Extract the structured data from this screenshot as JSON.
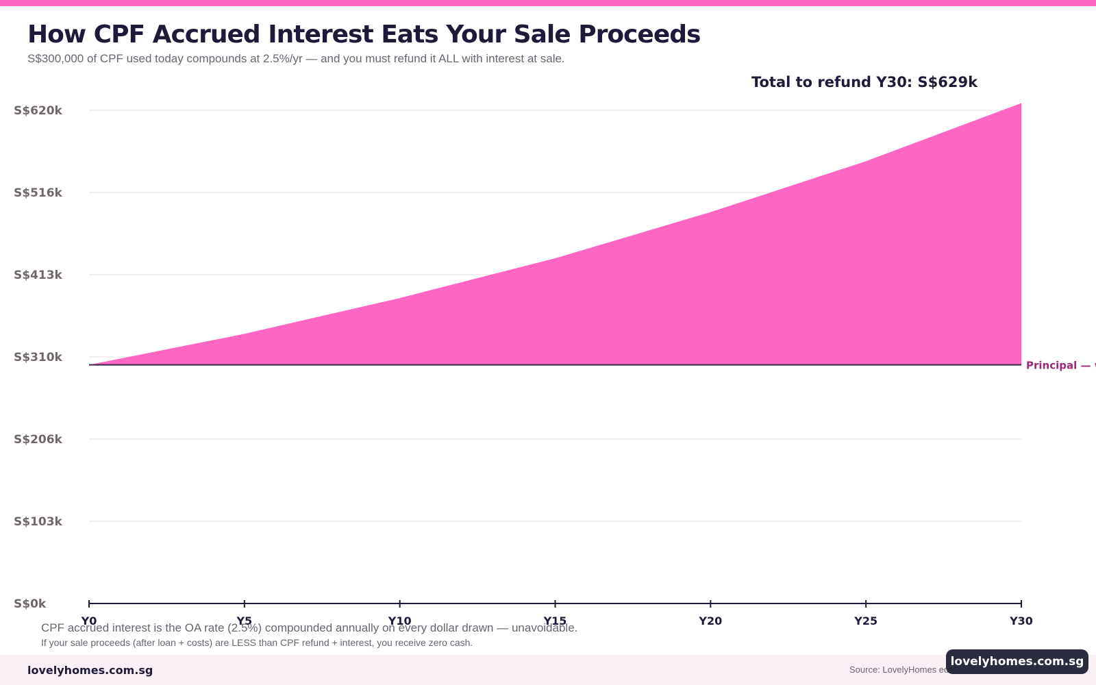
{
  "header": {
    "title": "How CPF Accrued Interest Eats Your Sale Proceeds",
    "subtitle": "S$300,000 of CPF used today compounds at 2.5%/yr — and you must refund it ALL with interest at sale."
  },
  "colors": {
    "accent": "#ff66c4",
    "area_fill": "#ff66c4",
    "principal_line": "#3a2340",
    "principal_label": "#9b2a73",
    "text_dark": "#1e1b3a",
    "text_muted": "#6b6470",
    "grid": "#e6e3e6",
    "badge_bg": "#2b2b3e"
  },
  "chart_data": {
    "type": "area",
    "title": "How CPF Accrued Interest Eats Your Sale Proceeds",
    "xlabel": "",
    "ylabel": "",
    "x_ticks": [
      "Y0",
      "Y5",
      "Y10",
      "Y15",
      "Y20",
      "Y25",
      "Y30"
    ],
    "y_ticks": [
      "S$0k",
      "S$103k",
      "S$206k",
      "S$310k",
      "S$413k",
      "S$516k",
      "S$620k"
    ],
    "ylim": [
      0,
      620000
    ],
    "xlim": [
      0,
      30
    ],
    "grid": true,
    "series": [
      {
        "x": [
          0,
          5,
          10,
          15,
          20,
          25,
          30
        ],
        "values": [
          300000,
          339000,
          384000,
          434000,
          492000,
          556000,
          629000
        ]
      }
    ],
    "principal": {
      "value": 300000,
      "label": "Principal — w"
    },
    "annotation": "Total to refund Y30: S$629k"
  },
  "notes": {
    "line1": "CPF accrued interest is the OA rate (2.5%) compounded annually on every dollar drawn — unavoidable.",
    "line2": "If your sale proceeds (after loan + costs) are LESS than CPF refund + interest, you receive zero cash."
  },
  "footer": {
    "brand": "lovelyhomes.com.sg",
    "source": "Source: LovelyHomes edi",
    "badge": "lovelyhomes.com.sg"
  }
}
